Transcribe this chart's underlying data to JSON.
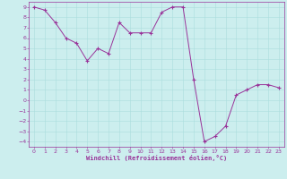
{
  "x": [
    0,
    1,
    2,
    3,
    4,
    5,
    6,
    7,
    8,
    9,
    10,
    11,
    12,
    13,
    14,
    15,
    16,
    17,
    18,
    19,
    20,
    21,
    22,
    23
  ],
  "y": [
    9,
    8.7,
    7.5,
    6.0,
    5.5,
    3.8,
    5.0,
    4.5,
    7.5,
    6.5,
    6.5,
    6.5,
    8.5,
    9.0,
    9.0,
    2.0,
    -4.0,
    -3.5,
    -2.5,
    0.5,
    1.0,
    1.5,
    1.5,
    1.2
  ],
  "xlim": [
    -0.5,
    23.5
  ],
  "ylim": [
    -4.5,
    9.5
  ],
  "xticks": [
    0,
    1,
    2,
    3,
    4,
    5,
    6,
    7,
    8,
    9,
    10,
    11,
    12,
    13,
    14,
    15,
    16,
    17,
    18,
    19,
    20,
    21,
    22,
    23
  ],
  "yticks": [
    -4,
    -3,
    -2,
    -1,
    0,
    1,
    2,
    3,
    4,
    5,
    6,
    7,
    8,
    9
  ],
  "xlabel": "Windchill (Refroidissement éolien,°C)",
  "line_color": "#993399",
  "marker": "+",
  "bg_color": "#cceeee",
  "grid_color": "#aadddd",
  "xlabel_color": "#993399",
  "tick_color": "#993399",
  "figsize": [
    3.2,
    2.0
  ],
  "dpi": 100
}
